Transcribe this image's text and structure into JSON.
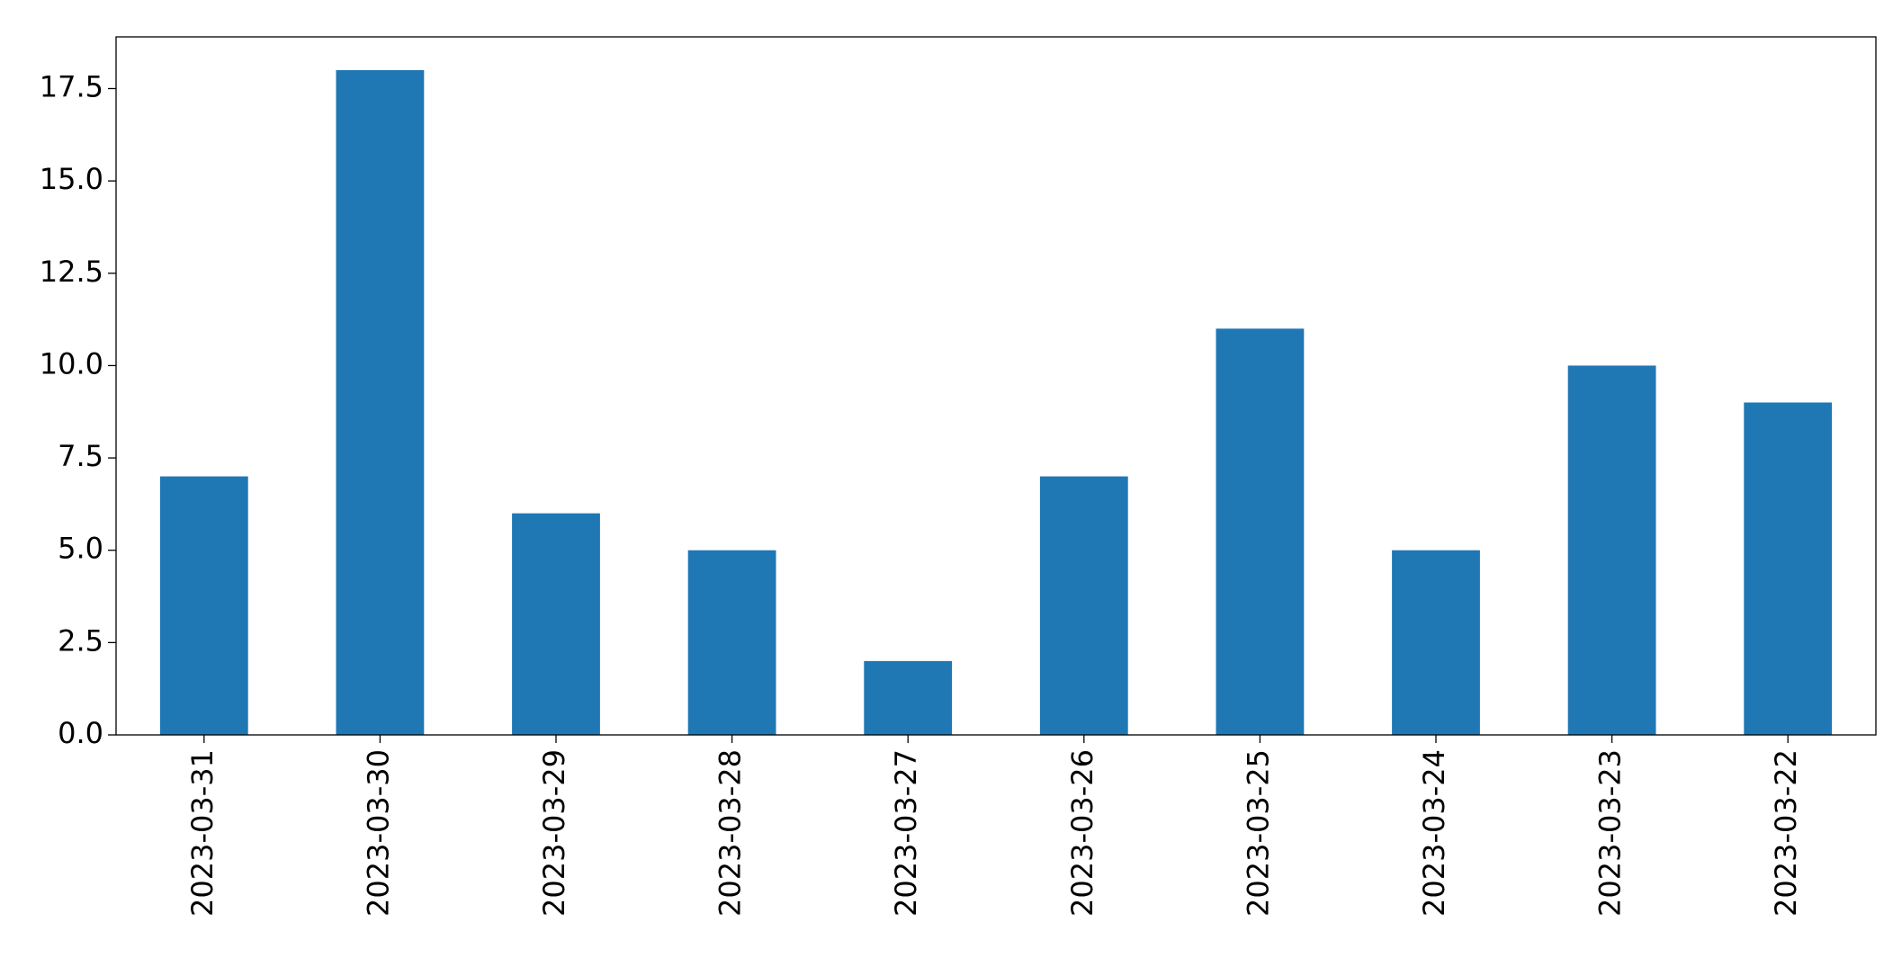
{
  "chart_data": {
    "type": "bar",
    "categories": [
      "2023-03-31",
      "2023-03-30",
      "2023-03-29",
      "2023-03-28",
      "2023-03-27",
      "2023-03-26",
      "2023-03-25",
      "2023-03-24",
      "2023-03-23",
      "2023-03-22"
    ],
    "values": [
      7,
      18,
      6,
      5,
      2,
      7,
      11,
      5,
      10,
      9
    ],
    "color": "#1f77b4",
    "ylim": [
      0,
      18.9
    ],
    "yticks": [
      {
        "value": 0,
        "label": "0.0"
      },
      2.5,
      {
        "value": 5,
        "label": "5.0"
      },
      7.5,
      {
        "value": 10,
        "label": "10.0"
      },
      12.5,
      {
        "value": 15,
        "label": "15.0"
      },
      17.5
    ],
    "grid": false
  }
}
